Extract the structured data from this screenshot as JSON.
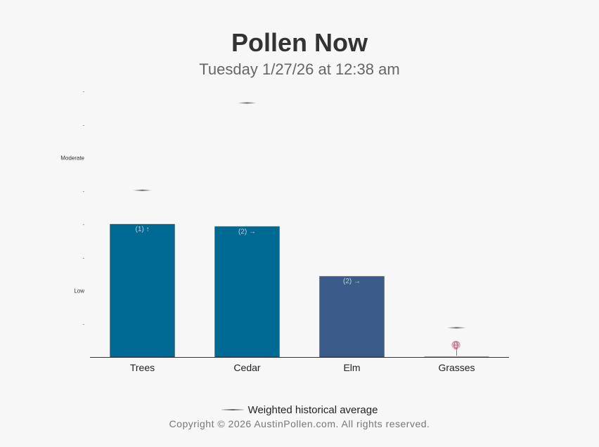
{
  "header": {
    "title": "Pollen Now",
    "subtitle": "Tuesday 1/27/26 at 12:38 am"
  },
  "legend": {
    "label": "Weighted historical average"
  },
  "footer": {
    "copyright": "Copyright © 2026 AustinPollen.com.  All rights reserved."
  },
  "colors": {
    "trees": "#006994",
    "cedar": "#006994",
    "elm": "#3b5b8a",
    "grasses": "#c06080",
    "average": "#666666",
    "axis": "#333333"
  },
  "chart_data": {
    "type": "bar",
    "ylim": [
      0,
      8
    ],
    "yticks": [
      {
        "value": 1,
        "label": "-"
      },
      {
        "value": 2,
        "label": "Low"
      },
      {
        "value": 3,
        "label": "-"
      },
      {
        "value": 4,
        "label": "-"
      },
      {
        "value": 5,
        "label": "-"
      },
      {
        "value": 6,
        "label": "Moderate"
      },
      {
        "value": 7,
        "label": "-"
      },
      {
        "value": 8,
        "label": "-"
      }
    ],
    "categories": [
      "Trees",
      "Cedar",
      "Elm",
      "Grasses"
    ],
    "values": [
      4.0,
      3.93,
      2.43,
      0.35
    ],
    "bar_labels": [
      "(1) ↑",
      "(2) →",
      "(2) →",
      "(1)"
    ],
    "historical_average": [
      5.02,
      7.65,
      null,
      0.88
    ]
  }
}
